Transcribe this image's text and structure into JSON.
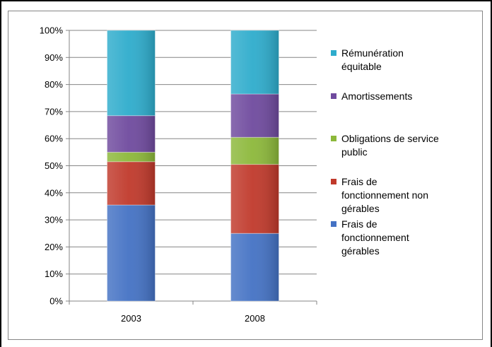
{
  "chart_data": {
    "type": "bar",
    "stacked": true,
    "percent": true,
    "categories": [
      "2003",
      "2008"
    ],
    "series": [
      {
        "name": "Frais de fonctionnement gérables",
        "values": [
          35.5,
          25
        ],
        "color": "#4472c4"
      },
      {
        "name": "Frais de fonctionnement non gérables",
        "values": [
          16,
          25.5
        ],
        "color": "#c0392b"
      },
      {
        "name": "Obligations de service public",
        "values": [
          3.5,
          10
        ],
        "color": "#8cb83a"
      },
      {
        "name": "Amortissements",
        "values": [
          13.5,
          16
        ],
        "color": "#6f4a9e"
      },
      {
        "name": "Rémunération équitable",
        "values": [
          31.5,
          23.5
        ],
        "color": "#2eaccc"
      }
    ],
    "ylim": [
      0,
      100
    ],
    "yticks": [
      "0%",
      "10%",
      "20%",
      "30%",
      "40%",
      "50%",
      "60%",
      "70%",
      "80%",
      "90%",
      "100%"
    ],
    "grid": true,
    "legend_position": "right",
    "legend": [
      {
        "series": "Rémunération équitable",
        "lines": [
          "Rémunération",
          "équitable"
        ],
        "color": "#2eaccc"
      },
      {
        "series": "Amortissements",
        "lines": [
          "Amortissements"
        ],
        "color": "#6f4a9e"
      },
      {
        "series": "Obligations de service public",
        "lines": [
          "Obligations de service",
          "public"
        ],
        "color": "#8cb83a"
      },
      {
        "series": "Frais de fonctionnement non gérables",
        "lines": [
          "Frais de",
          "fonctionnement non",
          "gérables"
        ],
        "color": "#c0392b"
      },
      {
        "series": "Frais de fonctionnement gérables",
        "lines": [
          "Frais de",
          "fonctionnement",
          "gérables"
        ],
        "color": "#4472c4"
      }
    ]
  }
}
